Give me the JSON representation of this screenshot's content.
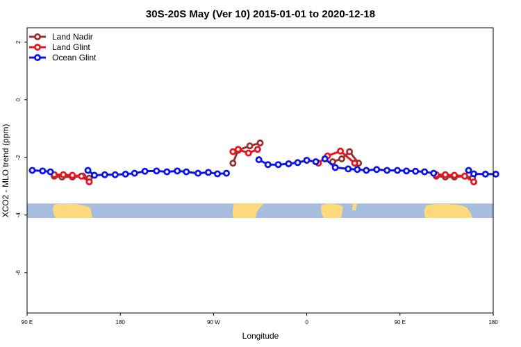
{
  "chart_data": {
    "type": "line",
    "title": "30S-20S May (Ver 10)   2015-01-01 to 2020-12-18",
    "xlabel": "Longitude",
    "ylabel": "XCO2 - MLO trend (ppm)",
    "xlim": [
      90,
      450
    ],
    "ylim": [
      -7.4,
      2.5
    ],
    "x_ticks": [
      {
        "value": 90,
        "label": "90 E"
      },
      {
        "value": 162,
        "label": "180"
      },
      {
        "value": 234,
        "label": "90 W"
      },
      {
        "value": 306,
        "label": "0"
      },
      {
        "value": 378,
        "label": "90 E"
      },
      {
        "value": 450,
        "label": "180"
      }
    ],
    "y_ticks": [
      {
        "value": 2,
        "label": "2"
      },
      {
        "value": 0,
        "label": "0"
      },
      {
        "value": -2,
        "label": "-2"
      },
      {
        "value": -4,
        "label": "-4"
      },
      {
        "value": -6,
        "label": "-6"
      }
    ],
    "grid": false,
    "legend_position": "top-left",
    "land_band": {
      "y_top": -3.6,
      "y_bottom": -4.1,
      "ocean_color": "#a7bde0",
      "land_color": "#fcd97a"
    },
    "series": [
      {
        "name": "Land Nadir",
        "color": "#9b3030",
        "segments": [
          [
            [
              111,
              -2.65
            ],
            [
              117,
              -2.68
            ],
            [
              125,
              -2.68
            ],
            [
              133,
              -2.65
            ],
            [
              138,
              -2.72
            ]
          ],
          [
            [
              249,
              -2.2
            ],
            [
              253,
              -1.75
            ],
            [
              262,
              -1.6
            ],
            [
              270,
              -1.5
            ]
          ],
          [
            [
              326,
              -2.15
            ],
            [
              333,
              -2.05
            ],
            [
              339,
              -1.8
            ],
            [
              346,
              -2.2
            ]
          ],
          [
            [
              406,
              -2.65
            ],
            [
              413,
              -2.68
            ],
            [
              420,
              -2.68
            ],
            [
              428,
              -2.65
            ],
            [
              434,
              -2.72
            ]
          ]
        ]
      },
      {
        "name": "Land Glint",
        "color": "#e8141e",
        "segments": [
          [
            [
              111,
              -2.6
            ],
            [
              118,
              -2.6
            ],
            [
              125,
              -2.62
            ],
            [
              132,
              -2.65
            ],
            [
              138,
              -2.85
            ]
          ],
          [
            [
              249,
              -1.8
            ],
            [
              253,
              -1.72
            ],
            [
              261,
              -1.85
            ],
            [
              268,
              -1.72
            ]
          ],
          [
            [
              315,
              -2.2
            ],
            [
              322,
              -1.95
            ],
            [
              332,
              -1.78
            ],
            [
              343,
              -2.2
            ]
          ],
          [
            [
              406,
              -2.6
            ],
            [
              413,
              -2.6
            ],
            [
              420,
              -2.62
            ],
            [
              428,
              -2.65
            ],
            [
              435,
              -2.85
            ]
          ]
        ]
      },
      {
        "name": "Ocean Glint",
        "color": "#0a14e8",
        "segments": [
          [
            [
              94,
              -2.45
            ],
            [
              102,
              -2.47
            ],
            [
              108,
              -2.5
            ]
          ],
          [
            [
              137,
              -2.45
            ],
            [
              142,
              -2.62
            ],
            [
              150,
              -2.6
            ],
            [
              158,
              -2.6
            ],
            [
              166,
              -2.58
            ],
            [
              173,
              -2.55
            ],
            [
              181,
              -2.48
            ],
            [
              190,
              -2.47
            ],
            [
              198,
              -2.5
            ],
            [
              206,
              -2.47
            ],
            [
              213,
              -2.5
            ],
            [
              222,
              -2.55
            ],
            [
              230,
              -2.52
            ],
            [
              237,
              -2.57
            ],
            [
              244,
              -2.55
            ]
          ],
          [
            [
              269,
              -2.08
            ],
            [
              276,
              -2.25
            ],
            [
              284,
              -2.25
            ],
            [
              292,
              -2.22
            ],
            [
              299,
              -2.18
            ],
            [
              306,
              -2.1
            ],
            [
              313,
              -2.15
            ]
          ],
          [
            [
              320,
              -2.05
            ],
            [
              328,
              -2.35
            ],
            [
              338,
              -2.4
            ],
            [
              345,
              -2.42
            ],
            [
              352,
              -2.45
            ],
            [
              360,
              -2.42
            ],
            [
              368,
              -2.45
            ],
            [
              376,
              -2.45
            ],
            [
              383,
              -2.47
            ],
            [
              390,
              -2.48
            ],
            [
              397,
              -2.5
            ],
            [
              404,
              -2.55
            ]
          ],
          [
            [
              431,
              -2.45
            ],
            [
              435,
              -2.57
            ],
            [
              444,
              -2.58
            ],
            [
              452,
              -2.58
            ]
          ]
        ]
      }
    ]
  }
}
